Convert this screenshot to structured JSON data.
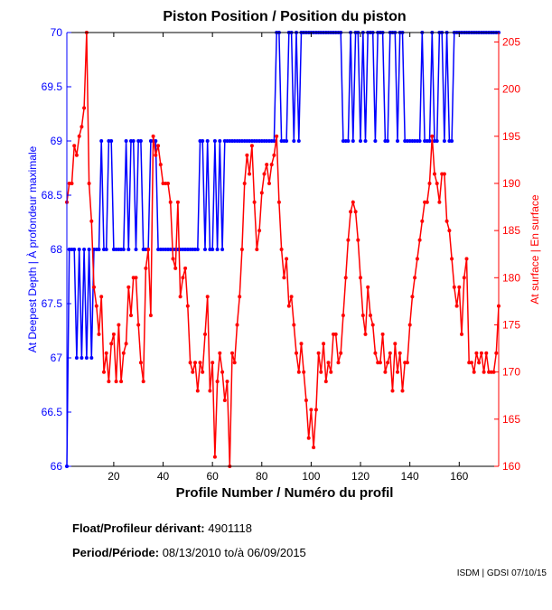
{
  "chart_data": {
    "type": "line",
    "title": "Piston Position / Position du piston",
    "xlabel": "Profile Number / Numéro du profil",
    "ylabel_left": "At Deepest Depth | À profondeur maximale",
    "ylabel_right": "At surface | En surface",
    "xlim": [
      1,
      176
    ],
    "ylim_left": [
      66,
      70
    ],
    "ylim_right": [
      160,
      206
    ],
    "x_ticks": [
      20,
      40,
      60,
      80,
      100,
      120,
      140,
      160
    ],
    "y_ticks_left": [
      "66",
      "66.5",
      "67",
      "67.5",
      "68",
      "68.5",
      "69",
      "69.5",
      "70"
    ],
    "y_ticks_left_values": [
      66,
      66.5,
      67,
      67.5,
      68,
      68.5,
      69,
      69.5,
      70
    ],
    "y_ticks_right": [
      "160",
      "165",
      "170",
      "175",
      "180",
      "185",
      "190",
      "195",
      "200",
      "205"
    ],
    "y_ticks_right_values": [
      160,
      165,
      170,
      175,
      180,
      185,
      190,
      195,
      200,
      205
    ],
    "grid": false,
    "colors": {
      "deepest": "#0000ff",
      "surface": "#ff0000",
      "axes": "#000000"
    },
    "series": [
      {
        "name": "At Deepest Depth",
        "axis": "left",
        "color": "#0000ff",
        "x_start": 1,
        "values": [
          66,
          68,
          68,
          68,
          67,
          68,
          67,
          68,
          67,
          68,
          67,
          68,
          68,
          68,
          69,
          68,
          68,
          69,
          69,
          68,
          68,
          68,
          68,
          68,
          69,
          68,
          69,
          69,
          68,
          69,
          69,
          68,
          68,
          68,
          69,
          69,
          69,
          68,
          68,
          68,
          68,
          68,
          68,
          68,
          68,
          68,
          68,
          68,
          68,
          68,
          68,
          68,
          68,
          68,
          69,
          69,
          68,
          69,
          68,
          68,
          69,
          68,
          69,
          68,
          69,
          69,
          69,
          69,
          69,
          69,
          69,
          69,
          69,
          69,
          69,
          69,
          69,
          69,
          69,
          69,
          69,
          69,
          69,
          69,
          69,
          70,
          70,
          69,
          69,
          69,
          70,
          70,
          69,
          70,
          69,
          70,
          70,
          70,
          70,
          70,
          70,
          70,
          70,
          70,
          70,
          70,
          70,
          70,
          70,
          70,
          70,
          70,
          69,
          69,
          69,
          70,
          69,
          70,
          70,
          69,
          70,
          69,
          70,
          70,
          70,
          69,
          70,
          70,
          70,
          69,
          69,
          70,
          70,
          70,
          69,
          70,
          70,
          69,
          69,
          69,
          69,
          69,
          69,
          69,
          70,
          69,
          69,
          69,
          70,
          69,
          69,
          70,
          70,
          69,
          70,
          69,
          69,
          70,
          70,
          70,
          70,
          70,
          70,
          70,
          70,
          70,
          70,
          70,
          70,
          70,
          70,
          70,
          70,
          70,
          70,
          70
        ]
      },
      {
        "name": "At surface",
        "axis": "right",
        "color": "#ff0000",
        "x_start": 1,
        "values": [
          188,
          190,
          190,
          194,
          193,
          195,
          196,
          198,
          206,
          190,
          186,
          179,
          177,
          174,
          178,
          170,
          172,
          169,
          173,
          174,
          169,
          175,
          169,
          172,
          173,
          179,
          176,
          180,
          180,
          175,
          171,
          169,
          181,
          183,
          176,
          195,
          193,
          194,
          192,
          190,
          190,
          190,
          188,
          182,
          181,
          188,
          178,
          180,
          181,
          177,
          171,
          170,
          171,
          168,
          171,
          170,
          174,
          178,
          168,
          171,
          161,
          169,
          172,
          170,
          167,
          169,
          160,
          172,
          171,
          175,
          178,
          183,
          190,
          193,
          191,
          194,
          188,
          183,
          185,
          189,
          191,
          192,
          190,
          192,
          193,
          195,
          188,
          183,
          180,
          182,
          177,
          178,
          175,
          172,
          170,
          173,
          170,
          167,
          163,
          166,
          162,
          166,
          172,
          170,
          173,
          169,
          171,
          170,
          174,
          174,
          171,
          172,
          176,
          180,
          184,
          187,
          188,
          187,
          184,
          180,
          176,
          174,
          179,
          176,
          175,
          172,
          171,
          171,
          174,
          170,
          171,
          172,
          168,
          173,
          170,
          172,
          168,
          171,
          171,
          175,
          178,
          180,
          182,
          184,
          186,
          188,
          188,
          190,
          195,
          191,
          190,
          188,
          191,
          191,
          186,
          185,
          182,
          179,
          177,
          179,
          174,
          180,
          182,
          171,
          171,
          170,
          172,
          171,
          172,
          170,
          172,
          170,
          170,
          170,
          172,
          177
        ]
      }
    ]
  },
  "footer": {
    "float_label": "Float/Profileur dérivant:",
    "float_value": "4901118",
    "period_label": "Period/Période:",
    "period_start": "08/13/2010",
    "period_sep": "to/à",
    "period_end": "06/09/2015",
    "credit": "ISDM | GDSI 07/10/15"
  }
}
